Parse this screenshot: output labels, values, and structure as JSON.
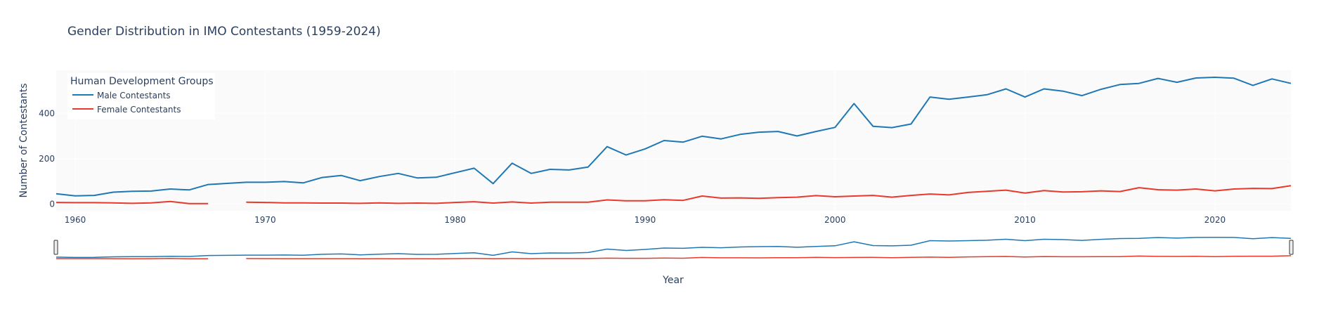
{
  "chart_data": {
    "type": "line",
    "title": "Gender Distribution in IMO Contestants (1959-2024)",
    "xlabel": "Year",
    "ylabel": "Number of Contestants",
    "xlim": [
      1959,
      2024
    ],
    "ylim": [
      -30,
      590
    ],
    "x_ticks": [
      1960,
      1970,
      1980,
      1990,
      2000,
      2010,
      2020
    ],
    "y_ticks": [
      0,
      200,
      400
    ],
    "grid": true,
    "legend": {
      "title": "Human Development Groups",
      "placement": "top-left"
    },
    "rangeslider": true,
    "series": [
      {
        "name": "Male Contestants",
        "color": "#1f77b4",
        "points": [
          [
            1959,
            45
          ],
          [
            1960,
            36
          ],
          [
            1961,
            38
          ],
          [
            1962,
            52
          ],
          [
            1963,
            56
          ],
          [
            1964,
            57
          ],
          [
            1965,
            66
          ],
          [
            1966,
            62
          ],
          [
            1967,
            86
          ],
          [
            1968,
            91
          ],
          [
            1969,
            96
          ],
          [
            1970,
            96
          ],
          [
            1971,
            99
          ],
          [
            1972,
            93
          ],
          [
            1973,
            117
          ],
          [
            1974,
            126
          ],
          [
            1975,
            103
          ],
          [
            1976,
            121
          ],
          [
            1977,
            135
          ],
          [
            1978,
            115
          ],
          [
            1979,
            118
          ],
          [
            1980,
            138
          ],
          [
            1981,
            158
          ],
          [
            1982,
            90
          ],
          [
            1983,
            180
          ],
          [
            1984,
            135
          ],
          [
            1985,
            153
          ],
          [
            1986,
            150
          ],
          [
            1987,
            163
          ],
          [
            1988,
            253
          ],
          [
            1989,
            216
          ],
          [
            1990,
            243
          ],
          [
            1991,
            280
          ],
          [
            1992,
            273
          ],
          [
            1993,
            299
          ],
          [
            1994,
            287
          ],
          [
            1995,
            307
          ],
          [
            1996,
            317
          ],
          [
            1997,
            320
          ],
          [
            1998,
            300
          ],
          [
            1999,
            320
          ],
          [
            2000,
            338
          ],
          [
            2001,
            443
          ],
          [
            2002,
            343
          ],
          [
            2003,
            337
          ],
          [
            2004,
            353
          ],
          [
            2005,
            472
          ],
          [
            2006,
            462
          ],
          [
            2007,
            472
          ],
          [
            2008,
            482
          ],
          [
            2009,
            508
          ],
          [
            2010,
            472
          ],
          [
            2011,
            508
          ],
          [
            2012,
            498
          ],
          [
            2013,
            478
          ],
          [
            2014,
            506
          ],
          [
            2015,
            527
          ],
          [
            2016,
            532
          ],
          [
            2017,
            554
          ],
          [
            2018,
            537
          ],
          [
            2019,
            556
          ],
          [
            2020,
            559
          ],
          [
            2021,
            555
          ],
          [
            2022,
            523
          ],
          [
            2023,
            552
          ],
          [
            2024,
            532
          ]
        ]
      },
      {
        "name": "Female Contestants",
        "color": "#e8392b",
        "points": [
          [
            1959,
            7
          ],
          [
            1960,
            6
          ],
          [
            1961,
            6
          ],
          [
            1962,
            5
          ],
          [
            1963,
            3
          ],
          [
            1964,
            5
          ],
          [
            1965,
            11
          ],
          [
            1966,
            2
          ],
          [
            1967,
            2
          ],
          [
            1968,
            null
          ],
          [
            1969,
            8
          ],
          [
            1970,
            7
          ],
          [
            1971,
            5
          ],
          [
            1972,
            5
          ],
          [
            1973,
            4
          ],
          [
            1974,
            4
          ],
          [
            1975,
            3
          ],
          [
            1976,
            5
          ],
          [
            1977,
            3
          ],
          [
            1978,
            4
          ],
          [
            1979,
            3
          ],
          [
            1980,
            7
          ],
          [
            1981,
            10
          ],
          [
            1982,
            4
          ],
          [
            1983,
            9
          ],
          [
            1984,
            4
          ],
          [
            1985,
            8
          ],
          [
            1986,
            8
          ],
          [
            1987,
            8
          ],
          [
            1988,
            18
          ],
          [
            1989,
            14
          ],
          [
            1990,
            14
          ],
          [
            1991,
            19
          ],
          [
            1992,
            16
          ],
          [
            1993,
            35
          ],
          [
            1994,
            26
          ],
          [
            1995,
            27
          ],
          [
            1996,
            25
          ],
          [
            1997,
            28
          ],
          [
            1998,
            30
          ],
          [
            1999,
            37
          ],
          [
            2000,
            32
          ],
          [
            2001,
            35
          ],
          [
            2002,
            38
          ],
          [
            2003,
            30
          ],
          [
            2004,
            38
          ],
          [
            2005,
            44
          ],
          [
            2006,
            40
          ],
          [
            2007,
            51
          ],
          [
            2008,
            56
          ],
          [
            2009,
            61
          ],
          [
            2010,
            48
          ],
          [
            2011,
            59
          ],
          [
            2012,
            53
          ],
          [
            2013,
            54
          ],
          [
            2014,
            58
          ],
          [
            2015,
            55
          ],
          [
            2016,
            72
          ],
          [
            2017,
            63
          ],
          [
            2018,
            61
          ],
          [
            2019,
            66
          ],
          [
            2020,
            58
          ],
          [
            2021,
            66
          ],
          [
            2022,
            69
          ],
          [
            2023,
            68
          ],
          [
            2024,
            81
          ]
        ]
      }
    ]
  }
}
